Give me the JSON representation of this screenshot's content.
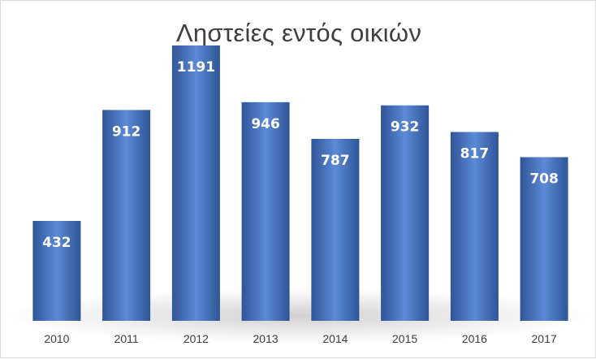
{
  "chart_data": {
    "type": "bar",
    "title": "Ληστείες εντός οικιών",
    "xlabel": "",
    "ylabel": "",
    "categories": [
      "2010",
      "2011",
      "2012",
      "2013",
      "2014",
      "2015",
      "2016",
      "2017"
    ],
    "values": [
      432,
      912,
      1191,
      946,
      787,
      932,
      817,
      708
    ],
    "data_labels": [
      "432",
      "912",
      "1191",
      "946",
      "787",
      "932",
      "817",
      "708"
    ],
    "ylim": [
      0,
      1300
    ],
    "grid": false,
    "legend": "none",
    "colors": {
      "bar": "#4472c4",
      "bar_dark": "#2f5597",
      "bar_light": "#5b8ad6",
      "text": "#404040"
    }
  }
}
